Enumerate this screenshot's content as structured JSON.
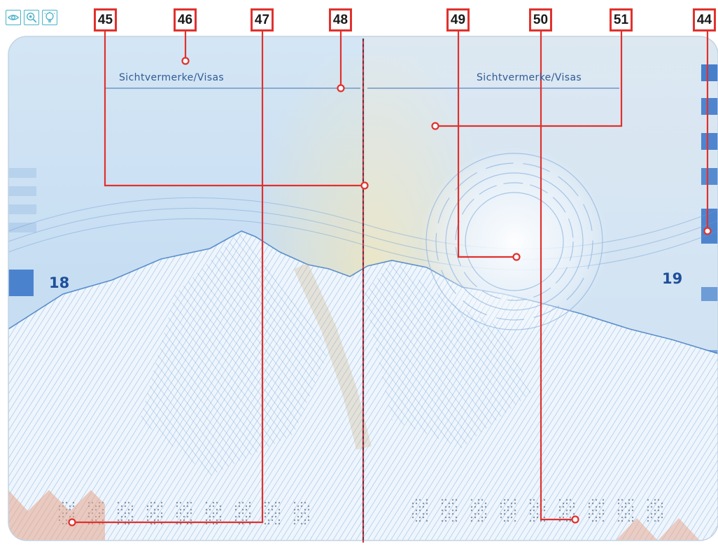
{
  "toolbar": {
    "buttons": [
      {
        "icon": "eye-icon",
        "mode": "visible light"
      },
      {
        "icon": "uv-magnifier-icon",
        "mode": "ultraviolet light"
      },
      {
        "icon": "bulb-icon",
        "mode": "transmitted light"
      }
    ],
    "accent": "#49b3c9"
  },
  "document": {
    "left_page": {
      "number": "18",
      "header": "Sichtvermerke/Visas"
    },
    "right_page": {
      "number": "19",
      "header": "Sichtvermerke/Visas"
    }
  },
  "callouts": [
    {
      "label": "45",
      "feature": "stitching thread"
    },
    {
      "label": "46",
      "feature": "page header"
    },
    {
      "label": "47",
      "feature": "laser-perforated number, left page"
    },
    {
      "label": "48",
      "feature": "header rule"
    },
    {
      "label": "49",
      "feature": "guilloche rosette"
    },
    {
      "label": "50",
      "feature": "laser-perforated number, right page"
    },
    {
      "label": "51",
      "feature": "background security print"
    },
    {
      "label": "44",
      "feature": "page edge mark"
    }
  ],
  "colors": {
    "callout_red": "#e0312d",
    "page_blue": "#c9e1f4",
    "ink_blue": "#1f4f9a",
    "thread": "#c83a4a"
  }
}
